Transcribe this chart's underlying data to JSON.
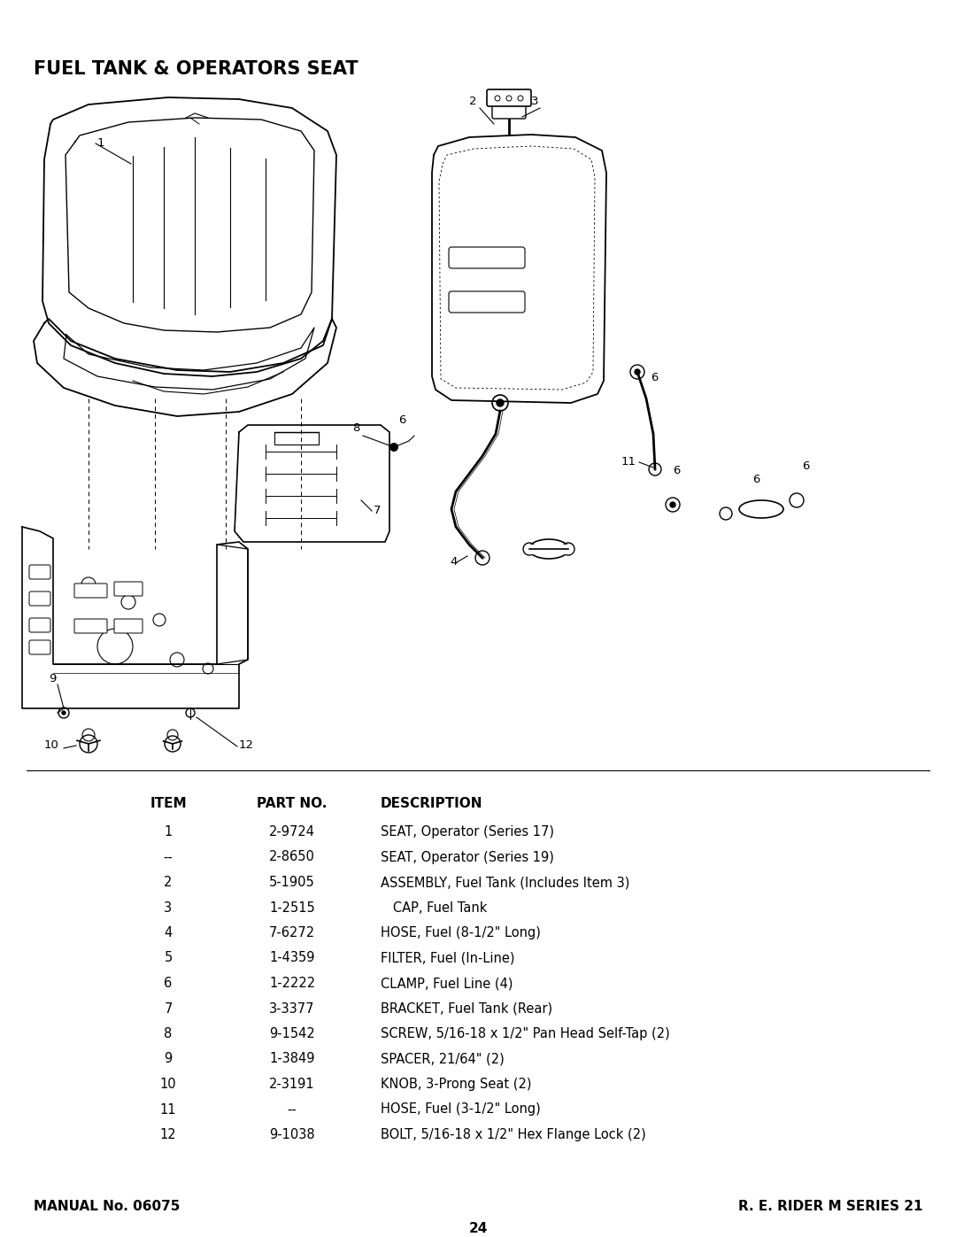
{
  "title": "FUEL TANK & OPERATORS SEAT",
  "background_color": "#ffffff",
  "table_header": [
    "ITEM",
    "PART NO.",
    "DESCRIPTION"
  ],
  "table_rows": [
    [
      "1",
      "2-9724",
      "SEAT, Operator (Series 17)"
    ],
    [
      "--",
      "2-8650",
      "SEAT, Operator (Series 19)"
    ],
    [
      "2",
      "5-1905",
      "ASSEMBLY, Fuel Tank (Includes Item 3)"
    ],
    [
      "3",
      "1-2515",
      "   CAP, Fuel Tank"
    ],
    [
      "4",
      "7-6272",
      "HOSE, Fuel (8-1/2\" Long)"
    ],
    [
      "5",
      "1-4359",
      "FILTER, Fuel (In-Line)"
    ],
    [
      "6",
      "1-2222",
      "CLAMP, Fuel Line (4)"
    ],
    [
      "7",
      "3-3377",
      "BRACKET, Fuel Tank (Rear)"
    ],
    [
      "8",
      "9-1542",
      "SCREW, 5/16-18 x 1/2\" Pan Head Self-Tap (2)"
    ],
    [
      "9",
      "1-3849",
      "SPACER, 21/64\" (2)"
    ],
    [
      "10",
      "2-3191",
      "KNOB, 3-Prong Seat (2)"
    ],
    [
      "11",
      "--",
      "HOSE, Fuel (3-1/2\" Long)"
    ],
    [
      "12",
      "9-1038",
      "BOLT, 5/16-18 x 1/2\" Hex Flange Lock (2)"
    ]
  ],
  "footer_left": "MANUAL No. 06075",
  "footer_right": "R. E. RIDER M SERIES 21",
  "page_number": "24"
}
